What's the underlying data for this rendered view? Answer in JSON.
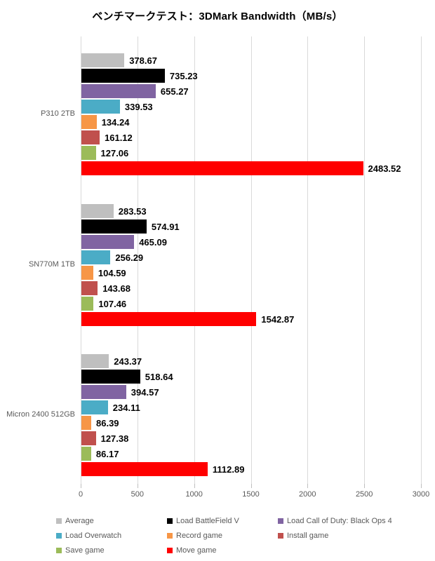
{
  "title": "ベンチマークテスト：3DMark Bandwidth（MB/s）",
  "chart_data": {
    "type": "bar",
    "orientation": "horizontal",
    "title": "ベンチマークテスト：3DMark Bandwidth（MB/s）",
    "categories": [
      "P310 2TB",
      "SN770M 1TB",
      "Micron 2400 512GB"
    ],
    "series": [
      {
        "name": "Average",
        "color": "#BFBFBF",
        "values": [
          378.67,
          283.53,
          243.37
        ]
      },
      {
        "name": "Load BattleField V",
        "color": "#000000",
        "values": [
          735.23,
          574.91,
          518.64
        ]
      },
      {
        "name": "Load Call of Duty: Black Ops 4",
        "color": "#8064A2",
        "values": [
          655.27,
          465.09,
          394.57
        ]
      },
      {
        "name": "Load Overwatch",
        "color": "#4BACC6",
        "values": [
          339.53,
          256.29,
          234.11
        ]
      },
      {
        "name": "Record game",
        "color": "#F79646",
        "values": [
          134.24,
          104.59,
          86.39
        ]
      },
      {
        "name": "Install game",
        "color": "#C0504D",
        "values": [
          161.12,
          143.68,
          127.38
        ]
      },
      {
        "name": "Save game",
        "color": "#9BBB59",
        "values": [
          127.06,
          107.46,
          86.17
        ]
      },
      {
        "name": "Move game",
        "color": "#FF0000",
        "values": [
          2483.52,
          1542.87,
          1112.89
        ]
      }
    ],
    "x_axis": {
      "min": 0,
      "max": 3000,
      "ticks": [
        0,
        500,
        1000,
        1500,
        2000,
        2500,
        3000
      ],
      "tick_labels": [
        "0",
        "500",
        "1000",
        "1500",
        "2000",
        "2500",
        "3000"
      ]
    },
    "value_labels_shown": true,
    "grid": true,
    "legend_position": "bottom",
    "legend_rows": [
      [
        "Average",
        "Load BattleField V",
        "Load Call of Duty: Black Ops 4"
      ],
      [
        "Load Overwatch",
        "Record game",
        "Install game"
      ],
      [
        "Save game",
        "Move game"
      ]
    ]
  }
}
